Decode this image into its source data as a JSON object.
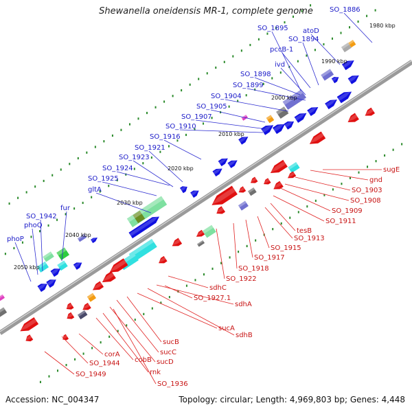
{
  "title": "Shewanella oneidensis MR-1, complete genome",
  "footer": {
    "accession": "Accession: NC_004347",
    "topology": "Topology: circular; Length: 4,969,803 bp; Genes: 4,448"
  },
  "ticks": [
    "1980 kbp",
    "1990 kbp",
    "2000 kbp",
    "2010 kbp",
    "2020 kbp",
    "2030 kbp",
    "2040 kbp",
    "2050 kbp"
  ],
  "labels_forward": [
    "SO_1886",
    "SO_1895",
    "atoD",
    "SO_1894",
    "pccB-1",
    "ivd",
    "SO_1898",
    "SO_1899",
    "SO_1904",
    "SO_1905",
    "SO_1907",
    "SO_1910",
    "SO_1916",
    "SO_1921",
    "SO_1923",
    "SO_1924",
    "SO_1925",
    "gltA",
    "fur",
    "SO_1942",
    "phoQ",
    "phoP"
  ],
  "labels_reverse": [
    "sugE",
    "gnd",
    "SO_1903",
    "SO_1908",
    "SO_1909",
    "SO_1911",
    "tesB",
    "SO_1913",
    "SO_1915",
    "SO_1917",
    "SO_1918",
    "SO_1922",
    "sdhC",
    "SO_1927.1",
    "sdhA",
    "sdhB",
    "sucA",
    "sucB",
    "sucC",
    "sucD",
    "rnk",
    "cobB",
    "corA",
    "SO_1944",
    "SO_1949",
    "SO_1936"
  ],
  "colors": {
    "forward_cds": "#1010e0",
    "reverse_cds": "#e01010",
    "forward_label": "#1a1ac8",
    "reverse_label": "#c81414",
    "backbone": "#888888",
    "tick_marks": "#2a8a2a",
    "cyan": "#30e0e0",
    "lightgreen": "#7ee0a0",
    "slate": "#7070d0",
    "gray": "#707070",
    "orange": "#f39c12",
    "magenta": "#e040c0",
    "green": "#2ecc40"
  }
}
